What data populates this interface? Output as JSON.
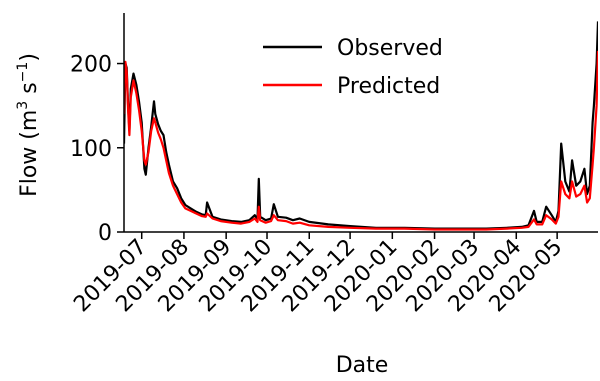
{
  "chart_data": {
    "type": "line",
    "title": "",
    "xlabel": "Date",
    "ylabel_main": "Flow (m",
    "ylabel_sup1": "3",
    "ylabel_mid": " s",
    "ylabel_sup2": "−1",
    "ylabel_end": ")",
    "xlim": [
      "2019-06-18",
      "2020-05-31"
    ],
    "ylim": [
      0,
      260
    ],
    "yticks": [
      0,
      100,
      200
    ],
    "xtick_labels": [
      "2019-07",
      "2019-08",
      "2019-09",
      "2019-10",
      "2019-11",
      "2019-12",
      "2020-01",
      "2020-02",
      "2020-03",
      "2020-04",
      "2020-05"
    ],
    "xtick_dates": [
      "2019-07-01",
      "2019-08-01",
      "2019-09-01",
      "2019-10-01",
      "2019-11-01",
      "2019-12-01",
      "2020-01-01",
      "2020-02-01",
      "2020-03-01",
      "2020-04-01",
      "2020-05-01"
    ],
    "legend_position": "top-center",
    "series": [
      {
        "name": "Observed",
        "color": "#000000",
        "x": [
          "2019-06-18",
          "2019-06-19",
          "2019-06-20",
          "2019-06-21",
          "2019-06-22",
          "2019-06-23",
          "2019-06-25",
          "2019-06-27",
          "2019-06-29",
          "2019-07-01",
          "2019-07-03",
          "2019-07-04",
          "2019-07-06",
          "2019-07-08",
          "2019-07-10",
          "2019-07-11",
          "2019-07-13",
          "2019-07-15",
          "2019-07-17",
          "2019-07-19",
          "2019-07-21",
          "2019-07-24",
          "2019-07-27",
          "2019-07-30",
          "2019-08-02",
          "2019-08-06",
          "2019-08-10",
          "2019-08-14",
          "2019-08-17",
          "2019-08-18",
          "2019-08-22",
          "2019-08-28",
          "2019-09-05",
          "2019-09-12",
          "2019-09-18",
          "2019-09-22",
          "2019-09-24",
          "2019-09-25",
          "2019-09-26",
          "2019-09-30",
          "2019-10-04",
          "2019-10-06",
          "2019-10-09",
          "2019-10-15",
          "2019-10-20",
          "2019-10-25",
          "2019-11-01",
          "2019-11-15",
          "2019-12-01",
          "2019-12-20",
          "2020-01-10",
          "2020-02-01",
          "2020-02-20",
          "2020-03-10",
          "2020-03-25",
          "2020-04-05",
          "2020-04-10",
          "2020-04-14",
          "2020-04-16",
          "2020-04-20",
          "2020-04-23",
          "2020-04-27",
          "2020-04-30",
          "2020-05-02",
          "2020-05-04",
          "2020-05-07",
          "2020-05-10",
          "2020-05-12",
          "2020-05-15",
          "2020-05-18",
          "2020-05-21",
          "2020-05-23",
          "2020-05-25",
          "2020-05-27",
          "2020-05-28",
          "2020-05-30",
          "2020-05-31"
        ],
        "y": [
          105,
          200,
          195,
          150,
          120,
          170,
          188,
          175,
          155,
          130,
          75,
          68,
          100,
          125,
          155,
          140,
          128,
          120,
          115,
          95,
          80,
          60,
          52,
          40,
          32,
          28,
          24,
          21,
          20,
          35,
          18,
          15,
          13,
          12,
          14,
          20,
          15,
          63,
          18,
          14,
          16,
          33,
          18,
          17,
          14,
          16,
          12,
          9,
          7,
          5,
          5,
          4,
          4,
          4,
          5,
          6,
          8,
          25,
          12,
          12,
          30,
          20,
          12,
          25,
          105,
          60,
          48,
          85,
          55,
          60,
          75,
          45,
          55,
          130,
          150,
          200,
          250
        ]
      },
      {
        "name": "Predicted",
        "color": "#ff0000",
        "x": [
          "2019-06-18",
          "2019-06-19",
          "2019-06-20",
          "2019-06-21",
          "2019-06-22",
          "2019-06-23",
          "2019-06-25",
          "2019-06-27",
          "2019-06-29",
          "2019-07-01",
          "2019-07-03",
          "2019-07-04",
          "2019-07-06",
          "2019-07-08",
          "2019-07-10",
          "2019-07-11",
          "2019-07-13",
          "2019-07-15",
          "2019-07-17",
          "2019-07-19",
          "2019-07-21",
          "2019-07-24",
          "2019-07-27",
          "2019-07-30",
          "2019-08-02",
          "2019-08-06",
          "2019-08-10",
          "2019-08-14",
          "2019-08-17",
          "2019-08-18",
          "2019-08-22",
          "2019-08-28",
          "2019-09-05",
          "2019-09-12",
          "2019-09-18",
          "2019-09-22",
          "2019-09-24",
          "2019-09-25",
          "2019-09-26",
          "2019-09-30",
          "2019-10-04",
          "2019-10-06",
          "2019-10-09",
          "2019-10-15",
          "2019-10-20",
          "2019-10-25",
          "2019-11-01",
          "2019-11-15",
          "2019-12-01",
          "2019-12-20",
          "2020-01-10",
          "2020-02-01",
          "2020-02-20",
          "2020-03-10",
          "2020-03-25",
          "2020-04-05",
          "2020-04-10",
          "2020-04-14",
          "2020-04-16",
          "2020-04-20",
          "2020-04-23",
          "2020-04-27",
          "2020-04-30",
          "2020-05-02",
          "2020-05-04",
          "2020-05-07",
          "2020-05-10",
          "2020-05-12",
          "2020-05-15",
          "2020-05-18",
          "2020-05-21",
          "2020-05-23",
          "2020-05-25",
          "2020-05-27",
          "2020-05-28",
          "2020-05-30",
          "2020-05-31"
        ],
        "y": [
          140,
          202,
          190,
          145,
          115,
          160,
          180,
          165,
          145,
          120,
          85,
          80,
          95,
          120,
          135,
          130,
          118,
          110,
          100,
          85,
          70,
          55,
          45,
          35,
          28,
          25,
          22,
          19,
          18,
          22,
          16,
          13,
          11,
          10,
          12,
          16,
          12,
          30,
          14,
          11,
          13,
          20,
          14,
          13,
          10,
          11,
          8,
          6,
          5,
          4,
          4,
          3,
          3,
          3,
          4,
          5,
          6,
          15,
          9,
          9,
          20,
          15,
          10,
          18,
          60,
          45,
          40,
          60,
          42,
          45,
          55,
          35,
          40,
          80,
          100,
          150,
          215
        ]
      }
    ]
  }
}
